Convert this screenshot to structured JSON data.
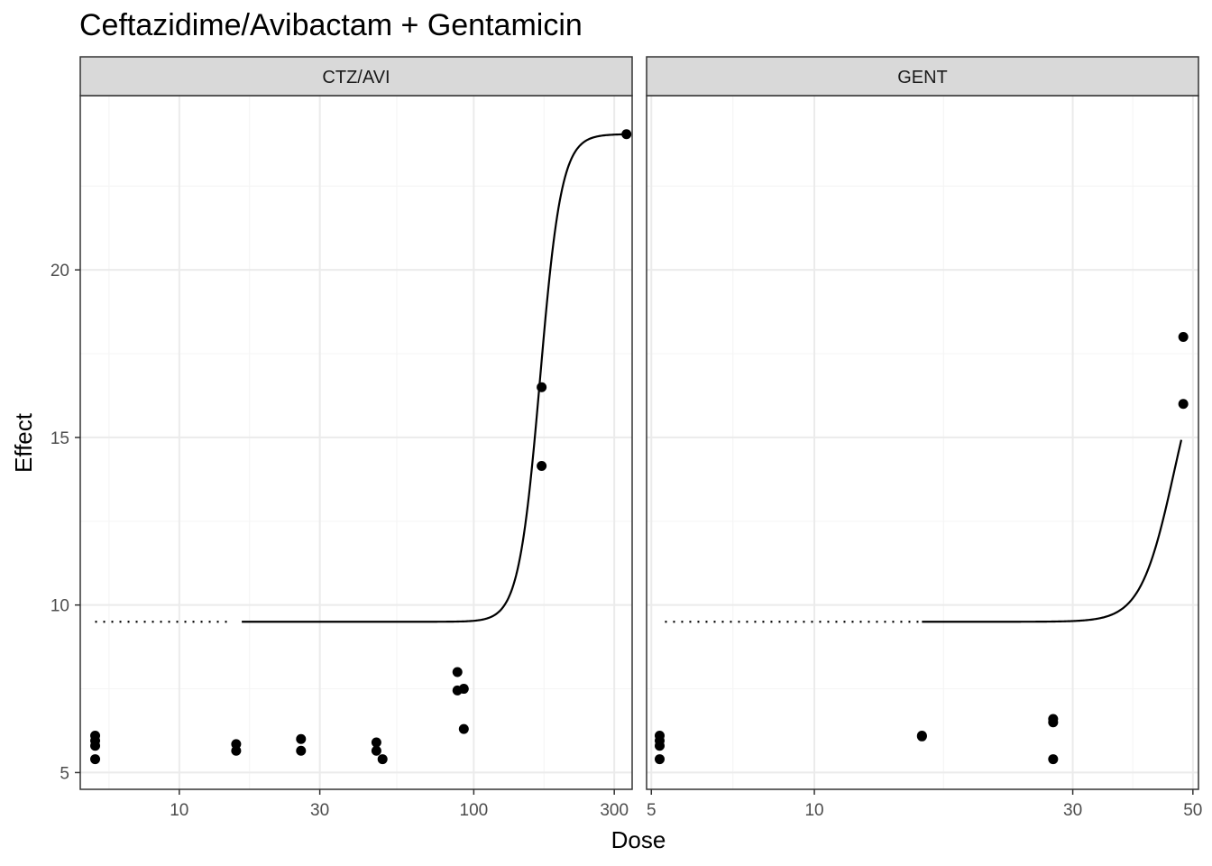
{
  "chart_data": {
    "type": "scatter",
    "title": "Ceftazidime/Avibactam + Gentamicin",
    "xlabel": "Dose",
    "ylabel": "Effect",
    "x_scale": "log10",
    "ylim": [
      4.5,
      25.2
    ],
    "y_ticks": [
      5,
      10,
      15,
      20
    ],
    "grid": true,
    "legend": "none",
    "colors": {
      "points": "#000000",
      "curve": "#000000",
      "strip_fill": "#d9d9d9",
      "grid_major": "#ebebeb",
      "grid_minor": "#f5f5f5",
      "panel_border": "#333333"
    },
    "panels": [
      {
        "strip": "CTZ/AVI",
        "xlim": [
          4.61,
          345
        ],
        "x_ticks": [
          10,
          30,
          100,
          300
        ],
        "x_tick_labels": [
          "10",
          "30",
          "100",
          "300"
        ],
        "points": [
          {
            "x": 5.18,
            "y": 6.1
          },
          {
            "x": 5.18,
            "y": 5.95
          },
          {
            "x": 5.18,
            "y": 5.8
          },
          {
            "x": 5.18,
            "y": 5.4
          },
          {
            "x": 15.6,
            "y": 5.85
          },
          {
            "x": 15.6,
            "y": 5.65
          },
          {
            "x": 25.9,
            "y": 6.0
          },
          {
            "x": 25.9,
            "y": 5.65
          },
          {
            "x": 46.7,
            "y": 5.9
          },
          {
            "x": 46.7,
            "y": 5.65
          },
          {
            "x": 49.0,
            "y": 5.4
          },
          {
            "x": 88.0,
            "y": 8.0
          },
          {
            "x": 88.0,
            "y": 7.45
          },
          {
            "x": 92.5,
            "y": 7.5
          },
          {
            "x": 92.5,
            "y": 6.3
          },
          {
            "x": 170,
            "y": 16.5
          },
          {
            "x": 170,
            "y": 14.15
          },
          {
            "x": 330,
            "y": 24.05
          }
        ],
        "dotted_baseline": {
          "x_start": 5.18,
          "x_end": 15.1,
          "y": 9.5
        },
        "curve": {
          "model": "hill",
          "bottom": 9.5,
          "top": 24.05,
          "ec50": 168,
          "hill": 12,
          "x_start": 16.3,
          "x_end": 330
        }
      },
      {
        "strip": "GENT",
        "xlim": [
          4.9,
          51.2
        ],
        "x_ticks": [
          5,
          10,
          30,
          50
        ],
        "x_tick_labels": [
          "5",
          "10",
          "30",
          "50"
        ],
        "points": [
          {
            "x": 5.18,
            "y": 6.1
          },
          {
            "x": 5.18,
            "y": 5.95
          },
          {
            "x": 5.18,
            "y": 5.8
          },
          {
            "x": 5.18,
            "y": 5.4
          },
          {
            "x": 15.8,
            "y": 6.1
          },
          {
            "x": 15.8,
            "y": 6.08
          },
          {
            "x": 27.6,
            "y": 6.6
          },
          {
            "x": 27.6,
            "y": 6.5
          },
          {
            "x": 27.6,
            "y": 5.4
          },
          {
            "x": 48.0,
            "y": 18.0
          },
          {
            "x": 48.0,
            "y": 16.0
          }
        ],
        "dotted_baseline": {
          "x_start": 5.3,
          "x_end": 15.8,
          "y": 9.5
        },
        "curve": {
          "model": "hill",
          "bottom": 9.5,
          "top": 18.5,
          "ec50": 46.2,
          "hill": 14,
          "x_start": 15.8,
          "x_end": 47.6
        }
      }
    ]
  }
}
